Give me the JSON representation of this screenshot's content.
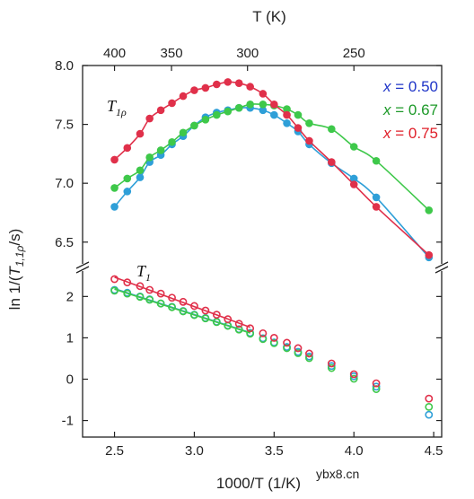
{
  "chart_data": {
    "type": "scatter",
    "xlabel": "1000/T (1/K)",
    "ylabel_prefix": "ln 1/(",
    "ylabel_T": "T",
    "ylabel_sub": "1,1ρ",
    "ylabel_suffix": "/s)",
    "top_xlabel": "T (K)",
    "xlim": [
      2.3,
      4.55
    ],
    "x_ticks": [
      "2.5",
      "3.0",
      "3.5",
      "4.0",
      "4.5"
    ],
    "top_ticks": [
      "400",
      "350",
      "300",
      "250"
    ],
    "upper_panel": {
      "label_T": "T",
      "label_sub": "1ρ",
      "ylim": [
        6.3,
        8.0
      ],
      "y_ticks": [
        "6.5",
        "7.0",
        "7.5",
        "8.0"
      ]
    },
    "lower_panel": {
      "label_T": "T",
      "label_sub": "1",
      "ylim": [
        -1.4,
        2.55
      ],
      "y_ticks": [
        "-1",
        "0",
        "1",
        "2"
      ]
    },
    "grid": false,
    "legend_position": "top-right",
    "series": [
      {
        "name_prefix": "x",
        "name_value": " = 0.50",
        "color": "#1f35c8",
        "marker_color": "#2e9fd8",
        "t1rho_x": [
          2.5,
          2.58,
          2.66,
          2.72,
          2.79,
          2.86,
          2.93,
          3.0,
          3.07,
          3.14,
          3.21,
          3.28,
          3.35,
          3.43,
          3.5,
          3.58,
          3.65,
          3.72,
          3.86,
          4.0,
          4.14,
          4.47
        ],
        "t1rho_y": [
          6.8,
          6.93,
          7.05,
          7.18,
          7.24,
          7.33,
          7.4,
          7.49,
          7.56,
          7.6,
          7.62,
          7.64,
          7.64,
          7.62,
          7.58,
          7.51,
          7.44,
          7.33,
          7.17,
          7.04,
          6.88,
          6.37
        ],
        "t1_x": [
          2.5,
          2.58,
          2.66,
          2.72,
          2.79,
          2.86,
          2.93,
          3.0,
          3.07,
          3.14,
          3.21,
          3.28,
          3.35,
          3.43,
          3.5,
          3.58,
          3.65,
          3.72,
          3.86,
          4.0,
          4.14,
          4.47
        ],
        "t1_y": [
          2.16,
          2.09,
          2.0,
          1.93,
          1.83,
          1.75,
          1.65,
          1.56,
          1.48,
          1.39,
          1.3,
          1.21,
          1.12,
          0.99,
          0.89,
          0.78,
          0.66,
          0.55,
          0.32,
          0.07,
          -0.18,
          -0.86
        ]
      },
      {
        "name_prefix": "x",
        "name_value": " = 0.67",
        "color": "#1e9a2a",
        "marker_color": "#3ec84a",
        "t1rho_x": [
          2.5,
          2.58,
          2.66,
          2.72,
          2.79,
          2.86,
          2.93,
          3.0,
          3.07,
          3.14,
          3.21,
          3.28,
          3.35,
          3.43,
          3.5,
          3.58,
          3.65,
          3.72,
          3.86,
          4.0,
          4.14,
          4.47
        ],
        "t1rho_y": [
          6.96,
          7.04,
          7.11,
          7.22,
          7.28,
          7.35,
          7.43,
          7.49,
          7.54,
          7.58,
          7.61,
          7.64,
          7.67,
          7.67,
          7.66,
          7.63,
          7.58,
          7.51,
          7.46,
          7.31,
          7.19,
          6.77
        ],
        "t1_x": [
          2.5,
          2.58,
          2.66,
          2.72,
          2.79,
          2.86,
          2.93,
          3.0,
          3.07,
          3.14,
          3.21,
          3.28,
          3.35,
          3.43,
          3.5,
          3.58,
          3.65,
          3.72,
          3.86,
          4.0,
          4.14,
          4.47
        ],
        "t1_y": [
          2.14,
          2.07,
          1.99,
          1.92,
          1.83,
          1.74,
          1.64,
          1.55,
          1.47,
          1.38,
          1.29,
          1.2,
          1.1,
          0.97,
          0.87,
          0.75,
          0.63,
          0.51,
          0.27,
          0.01,
          -0.24,
          -0.67
        ]
      },
      {
        "name_prefix": "x",
        "name_value": " = 0.75",
        "color": "#e0202a",
        "marker_color": "#e0304a",
        "t1rho_x": [
          2.5,
          2.58,
          2.66,
          2.72,
          2.79,
          2.86,
          2.93,
          3.0,
          3.07,
          3.14,
          3.21,
          3.28,
          3.35,
          3.43,
          3.5,
          3.58,
          3.65,
          3.72,
          3.86,
          4.0,
          4.14,
          4.47
        ],
        "t1rho_y": [
          7.2,
          7.3,
          7.42,
          7.55,
          7.62,
          7.68,
          7.74,
          7.79,
          7.81,
          7.84,
          7.86,
          7.85,
          7.82,
          7.76,
          7.67,
          7.58,
          7.47,
          7.36,
          7.18,
          6.99,
          6.8,
          6.39
        ],
        "t1_x": [
          2.5,
          2.58,
          2.66,
          2.72,
          2.79,
          2.86,
          2.93,
          3.0,
          3.07,
          3.14,
          3.21,
          3.28,
          3.35,
          3.43,
          3.5,
          3.58,
          3.65,
          3.72,
          3.86,
          4.0,
          4.14,
          4.47
        ],
        "t1_y": [
          2.42,
          2.34,
          2.25,
          2.16,
          2.07,
          1.97,
          1.87,
          1.77,
          1.66,
          1.56,
          1.45,
          1.34,
          1.23,
          1.11,
          1.0,
          0.88,
          0.75,
          0.62,
          0.38,
          0.12,
          -0.1,
          -0.47
        ]
      }
    ]
  },
  "watermark": "ybx8.cn"
}
